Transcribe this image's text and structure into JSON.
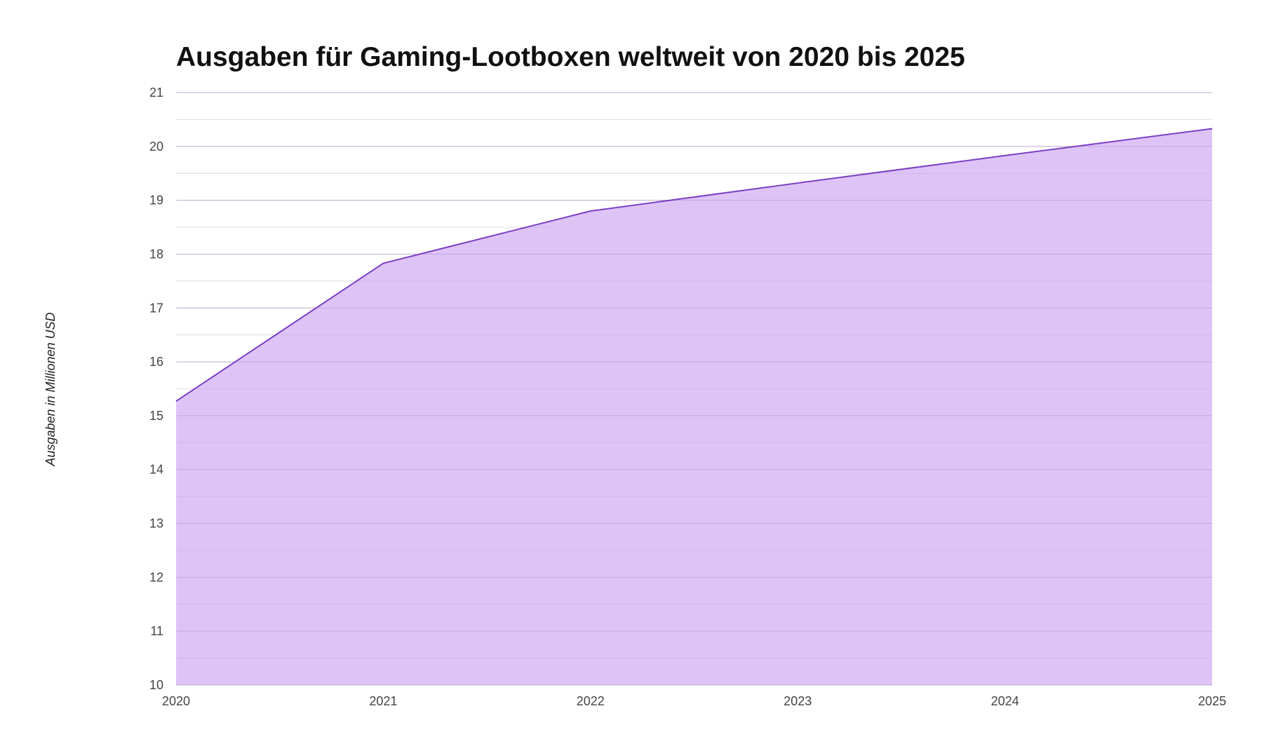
{
  "chart_data": {
    "type": "area",
    "title": "Ausgaben für Gaming-Lootboxen weltweit von 2020 bis 2025",
    "xlabel": "",
    "ylabel": "Ausgaben in Millionen USD",
    "categories": [
      "2020",
      "2021",
      "2022",
      "2023",
      "2024",
      "2025"
    ],
    "values": [
      15.27,
      17.83,
      18.8,
      19.32,
      19.83,
      20.33
    ],
    "ylim": [
      10,
      21
    ],
    "yticks": [
      "10",
      "11",
      "12",
      "13",
      "14",
      "15",
      "16",
      "17",
      "18",
      "19",
      "20",
      "21"
    ],
    "grid": true,
    "minor_grid": true,
    "legend": "none",
    "colors": {
      "fill": "#dbbff5",
      "line": "#7b3fc4",
      "grid": "#d4d4d4"
    }
  }
}
